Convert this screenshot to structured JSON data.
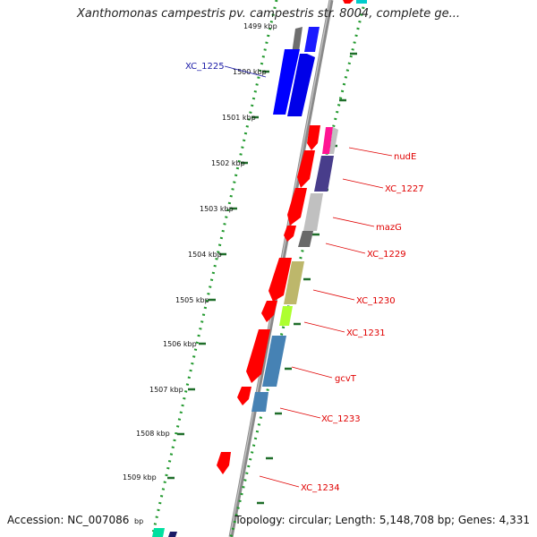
{
  "header": {
    "title": "Xanthomonas campestris pv. campestris str. 8004, complete ge..."
  },
  "footer": {
    "accession": "Accession: NC_007086",
    "summary": "Topology: circular; Length: 5,148,708 bp; Genes: 4,331"
  },
  "ruler": {
    "ticks": [
      "1499 kbp",
      "1500 kbp",
      "1501 kbp",
      "1502 kbp",
      "1503 kbp",
      "1504 kbp",
      "1505 kbp",
      "1506 kbp",
      "1507 kbp",
      "1508 kbp",
      "1509 kbp",
      "bp"
    ]
  },
  "genes": [
    {
      "label": "XC_1225",
      "color": "#0000ff"
    },
    {
      "label": "nudE",
      "color": "#ff0000"
    },
    {
      "label": "XC_1227",
      "color": "#483d8b"
    },
    {
      "label": "mazG",
      "color": "#c0c0c0"
    },
    {
      "label": "XC_1229",
      "color": "#696969"
    },
    {
      "label": "XC_1230",
      "color": "#bdb76b"
    },
    {
      "label": "XC_1231",
      "color": "#adff2f"
    },
    {
      "label": "gcvT",
      "color": "#4682b4"
    },
    {
      "label": "XC_1233",
      "color": "#4682b4"
    },
    {
      "label": "XC_1234",
      "color": "#ff0000"
    }
  ],
  "colors": {
    "backbone": "#888888",
    "ruler_dots": "#22992e",
    "forward_strand": "#ff0000",
    "label_red": "#e00000",
    "label_blue": "#1a1aa6"
  }
}
